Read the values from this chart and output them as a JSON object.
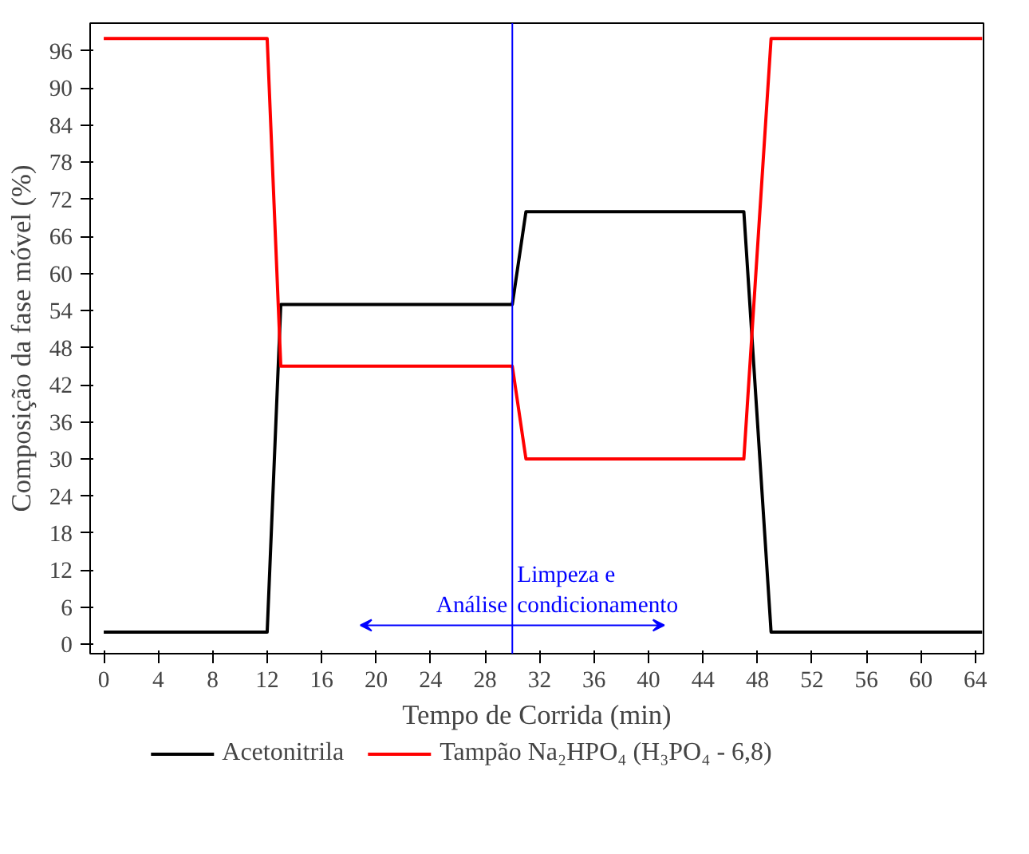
{
  "chart_data": {
    "type": "line",
    "xlabel": "Tempo de Corrida (min)",
    "ylabel": "Composição da fase móvel (%)",
    "series": [
      {
        "name": "Acetonitrila",
        "color": "#000000",
        "x": [
          0,
          12,
          13,
          30,
          31,
          47,
          49,
          64.5
        ],
        "values": [
          2,
          2,
          55,
          55,
          70,
          70,
          2,
          2
        ]
      },
      {
        "name": "Tampão Na₂HPO₄ (H₃PO₄ - 6,8)",
        "color": "#ff0000",
        "x": [
          0,
          12,
          13,
          30,
          31,
          47,
          49,
          64.5
        ],
        "values": [
          98,
          98,
          45,
          45,
          30,
          30,
          98,
          98
        ]
      }
    ],
    "xlim": [
      -1,
      64.6
    ],
    "ylim": [
      -1.5,
      100.5
    ],
    "xticks": [
      0,
      4,
      8,
      12,
      16,
      20,
      24,
      28,
      32,
      36,
      40,
      44,
      48,
      52,
      56,
      60,
      64
    ],
    "yticks": [
      0,
      6,
      12,
      18,
      24,
      30,
      36,
      42,
      48,
      54,
      60,
      66,
      72,
      78,
      84,
      90,
      96
    ],
    "ref_lines": [
      {
        "axis": "x",
        "value": 30,
        "color": "#0000ff"
      }
    ],
    "annotations": [
      "Análise",
      "Limpeza e\ncondicionamento"
    ],
    "legend": "bottom",
    "grid": false,
    "marker": "none",
    "line_style": "solid"
  }
}
